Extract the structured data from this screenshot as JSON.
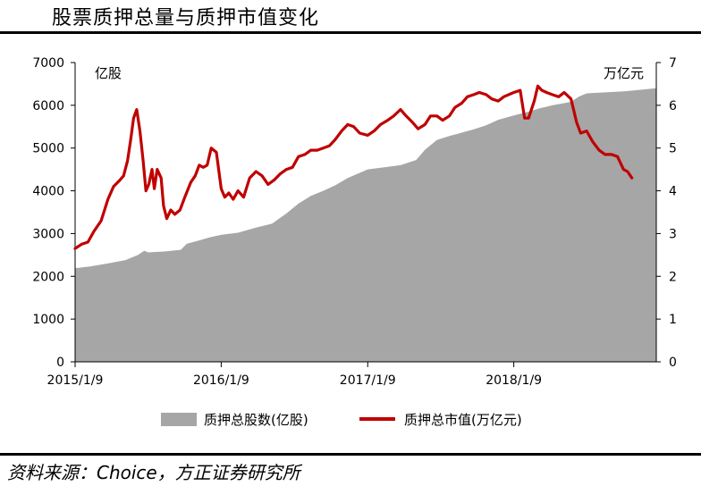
{
  "title": "股票质押总量与质押市值变化",
  "source": "资料来源：Choice，方正证券研究所",
  "chart_data": {
    "type": "area",
    "left_axis_label": "亿股",
    "right_axis_label": "万亿元",
    "left_ylim": [
      0,
      7000
    ],
    "left_yticks": [
      "0",
      "1000",
      "2000",
      "3000",
      "4000",
      "5000",
      "6000",
      "7000"
    ],
    "right_ylim": [
      0,
      7
    ],
    "right_yticks": [
      "0",
      "1",
      "2",
      "3",
      "4",
      "5",
      "6",
      "7"
    ],
    "x_range": [
      "2015-01-09",
      "2018-12-31"
    ],
    "xticks": [
      {
        "date": "2015-01-09",
        "label": "2015/1/9"
      },
      {
        "date": "2016-01-09",
        "label": "2016/1/9"
      },
      {
        "date": "2017-01-09",
        "label": "2017/1/9"
      },
      {
        "date": "2018-01-09",
        "label": "2018/1/9"
      }
    ],
    "grid": false,
    "legend_position": "bottom",
    "series": [
      {
        "name": "质押总股数(亿股)",
        "type": "area",
        "axis": "left",
        "color": "#a6a6a6",
        "points": [
          [
            "2015-01-09",
            2190
          ],
          [
            "2015-02-15",
            2230
          ],
          [
            "2015-04-01",
            2300
          ],
          [
            "2015-05-15",
            2380
          ],
          [
            "2015-06-15",
            2500
          ],
          [
            "2015-07-01",
            2600
          ],
          [
            "2015-07-10",
            2560
          ],
          [
            "2015-08-20",
            2580
          ],
          [
            "2015-09-30",
            2620
          ],
          [
            "2015-10-15",
            2760
          ],
          [
            "2015-11-15",
            2840
          ],
          [
            "2015-12-15",
            2920
          ],
          [
            "2016-01-09",
            2970
          ],
          [
            "2016-02-20",
            3020
          ],
          [
            "2016-04-01",
            3130
          ],
          [
            "2016-05-15",
            3230
          ],
          [
            "2016-06-20",
            3470
          ],
          [
            "2016-07-20",
            3700
          ],
          [
            "2016-08-20",
            3880
          ],
          [
            "2016-09-20",
            4000
          ],
          [
            "2016-10-20",
            4130
          ],
          [
            "2016-11-20",
            4300
          ],
          [
            "2016-12-20",
            4420
          ],
          [
            "2017-01-09",
            4500
          ],
          [
            "2017-02-20",
            4550
          ],
          [
            "2017-04-01",
            4600
          ],
          [
            "2017-05-10",
            4720
          ],
          [
            "2017-06-01",
            4960
          ],
          [
            "2017-07-01",
            5190
          ],
          [
            "2017-08-01",
            5280
          ],
          [
            "2017-09-01",
            5360
          ],
          [
            "2017-10-01",
            5440
          ],
          [
            "2017-11-01",
            5530
          ],
          [
            "2017-12-01",
            5660
          ],
          [
            "2018-01-09",
            5760
          ],
          [
            "2018-02-15",
            5850
          ],
          [
            "2018-03-15",
            5930
          ],
          [
            "2018-04-15",
            6000
          ],
          [
            "2018-06-01",
            6080
          ],
          [
            "2018-06-20",
            6200
          ],
          [
            "2018-07-10",
            6280
          ],
          [
            "2018-08-20",
            6300
          ],
          [
            "2018-10-15",
            6330
          ],
          [
            "2018-12-31",
            6400
          ]
        ]
      },
      {
        "name": "质押总市值(万亿元)",
        "type": "line",
        "axis": "right",
        "color": "#c00000",
        "points": [
          [
            "2015-01-09",
            2.65
          ],
          [
            "2015-01-25",
            2.75
          ],
          [
            "2015-02-10",
            2.8
          ],
          [
            "2015-02-25",
            3.05
          ],
          [
            "2015-03-15",
            3.3
          ],
          [
            "2015-04-01",
            3.8
          ],
          [
            "2015-04-15",
            4.1
          ],
          [
            "2015-05-01",
            4.25
          ],
          [
            "2015-05-10",
            4.35
          ],
          [
            "2015-05-20",
            4.7
          ],
          [
            "2015-05-28",
            5.2
          ],
          [
            "2015-06-04",
            5.7
          ],
          [
            "2015-06-12",
            5.9
          ],
          [
            "2015-06-20",
            5.4
          ],
          [
            "2015-06-28",
            4.7
          ],
          [
            "2015-07-05",
            4.0
          ],
          [
            "2015-07-12",
            4.15
          ],
          [
            "2015-07-20",
            4.5
          ],
          [
            "2015-07-26",
            4.05
          ],
          [
            "2015-08-02",
            4.5
          ],
          [
            "2015-08-12",
            4.3
          ],
          [
            "2015-08-18",
            3.65
          ],
          [
            "2015-08-26",
            3.35
          ],
          [
            "2015-09-05",
            3.55
          ],
          [
            "2015-09-15",
            3.45
          ],
          [
            "2015-09-28",
            3.55
          ],
          [
            "2015-10-10",
            3.85
          ],
          [
            "2015-10-25",
            4.2
          ],
          [
            "2015-11-05",
            4.35
          ],
          [
            "2015-11-15",
            4.6
          ],
          [
            "2015-11-25",
            4.55
          ],
          [
            "2015-12-05",
            4.6
          ],
          [
            "2015-12-15",
            5.0
          ],
          [
            "2015-12-28",
            4.9
          ],
          [
            "2016-01-09",
            4.05
          ],
          [
            "2016-01-18",
            3.85
          ],
          [
            "2016-01-28",
            3.95
          ],
          [
            "2016-02-08",
            3.8
          ],
          [
            "2016-02-20",
            4.0
          ],
          [
            "2016-03-05",
            3.85
          ],
          [
            "2016-03-20",
            4.3
          ],
          [
            "2016-04-05",
            4.45
          ],
          [
            "2016-04-20",
            4.35
          ],
          [
            "2016-05-05",
            4.15
          ],
          [
            "2016-05-20",
            4.25
          ],
          [
            "2016-06-05",
            4.4
          ],
          [
            "2016-06-20",
            4.5
          ],
          [
            "2016-07-05",
            4.55
          ],
          [
            "2016-07-20",
            4.8
          ],
          [
            "2016-08-05",
            4.85
          ],
          [
            "2016-08-20",
            4.95
          ],
          [
            "2016-09-05",
            4.95
          ],
          [
            "2016-09-20",
            5.0
          ],
          [
            "2016-10-05",
            5.05
          ],
          [
            "2016-10-20",
            5.2
          ],
          [
            "2016-11-05",
            5.4
          ],
          [
            "2016-11-20",
            5.55
          ],
          [
            "2016-12-05",
            5.5
          ],
          [
            "2016-12-20",
            5.35
          ],
          [
            "2017-01-09",
            5.3
          ],
          [
            "2017-01-25",
            5.4
          ],
          [
            "2017-02-10",
            5.55
          ],
          [
            "2017-02-28",
            5.65
          ],
          [
            "2017-03-15",
            5.75
          ],
          [
            "2017-04-01",
            5.9
          ],
          [
            "2017-04-15",
            5.75
          ],
          [
            "2017-05-01",
            5.6
          ],
          [
            "2017-05-15",
            5.45
          ],
          [
            "2017-06-01",
            5.55
          ],
          [
            "2017-06-15",
            5.75
          ],
          [
            "2017-07-01",
            5.75
          ],
          [
            "2017-07-15",
            5.65
          ],
          [
            "2017-08-01",
            5.75
          ],
          [
            "2017-08-15",
            5.95
          ],
          [
            "2017-09-01",
            6.05
          ],
          [
            "2017-09-15",
            6.2
          ],
          [
            "2017-10-01",
            6.25
          ],
          [
            "2017-10-15",
            6.3
          ],
          [
            "2017-11-01",
            6.25
          ],
          [
            "2017-11-15",
            6.15
          ],
          [
            "2017-12-01",
            6.1
          ],
          [
            "2017-12-15",
            6.2
          ],
          [
            "2018-01-09",
            6.3
          ],
          [
            "2018-01-25",
            6.35
          ],
          [
            "2018-02-05",
            5.7
          ],
          [
            "2018-02-15",
            5.7
          ],
          [
            "2018-03-01",
            6.1
          ],
          [
            "2018-03-10",
            6.45
          ],
          [
            "2018-03-20",
            6.35
          ],
          [
            "2018-04-01",
            6.3
          ],
          [
            "2018-04-15",
            6.25
          ],
          [
            "2018-05-01",
            6.2
          ],
          [
            "2018-05-15",
            6.3
          ],
          [
            "2018-06-01",
            6.15
          ],
          [
            "2018-06-15",
            5.6
          ],
          [
            "2018-06-25",
            5.35
          ],
          [
            "2018-07-10",
            5.4
          ],
          [
            "2018-07-25",
            5.15
          ],
          [
            "2018-08-10",
            4.95
          ],
          [
            "2018-08-25",
            4.85
          ],
          [
            "2018-09-10",
            4.85
          ],
          [
            "2018-09-25",
            4.8
          ],
          [
            "2018-10-10",
            4.5
          ],
          [
            "2018-10-20",
            4.45
          ],
          [
            "2018-10-31",
            4.3
          ]
        ]
      }
    ]
  }
}
